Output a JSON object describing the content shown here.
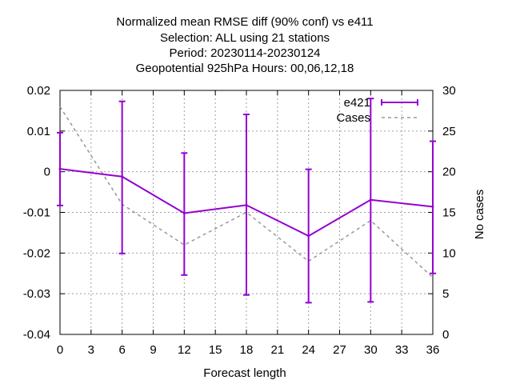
{
  "chart_data": {
    "type": "line",
    "title_lines": [
      "Normalized mean RMSE diff (90% conf) vs e411",
      "Selection: ALL using    21 stations",
      "Period: 20230114-20230124",
      "Geopotential 925hPa   Hours:  00,06,12,18"
    ],
    "xlabel": "Forecast length",
    "ylabel": "",
    "y2label": "No cases",
    "xlim": [
      0,
      36
    ],
    "ylim": [
      -0.04,
      0.02
    ],
    "y2lim": [
      0,
      30
    ],
    "x_ticks": [
      0,
      3,
      6,
      9,
      12,
      15,
      18,
      21,
      24,
      27,
      30,
      33,
      36
    ],
    "y_ticks": [
      -0.04,
      -0.03,
      -0.02,
      -0.01,
      0,
      0.01,
      0.02
    ],
    "y_tick_labels": [
      "-0.04",
      "-0.03",
      "-0.02",
      "-0.01",
      "0",
      "0.01",
      "0.02"
    ],
    "y2_ticks": [
      0,
      5,
      10,
      15,
      20,
      25,
      30
    ],
    "grid": true,
    "legend_position": "top-right",
    "series": [
      {
        "name": "e421",
        "axis": "y",
        "style": "line+errorbars",
        "color": "#9400d3",
        "x": [
          0,
          6,
          12,
          18,
          24,
          30,
          36
        ],
        "y": [
          0.0007,
          -0.0012,
          -0.0102,
          -0.0082,
          -0.0158,
          -0.0069,
          -0.0086
        ],
        "err_low": [
          -0.0083,
          -0.0201,
          -0.0254,
          -0.0303,
          -0.0322,
          -0.032,
          -0.025
        ],
        "err_high": [
          0.0096,
          0.0173,
          0.0046,
          0.0141,
          0.0006,
          0.018,
          0.0075
        ]
      },
      {
        "name": "Cases",
        "axis": "y2",
        "style": "dashed",
        "color": "#999999",
        "x": [
          0,
          6,
          12,
          18,
          24,
          30,
          36
        ],
        "y": [
          28,
          16,
          11,
          15,
          9,
          14,
          7
        ]
      }
    ]
  }
}
